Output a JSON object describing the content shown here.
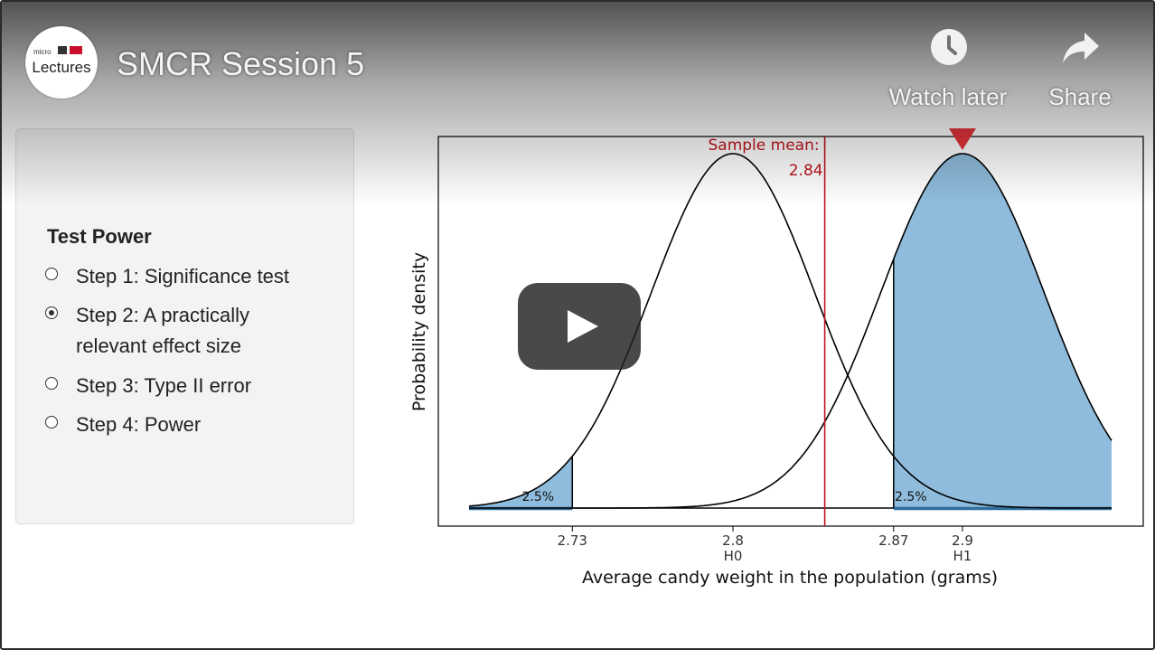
{
  "video": {
    "title": "SMCR Session 5",
    "logo_micro": "micro",
    "logo_name": "Lectures",
    "watch_later_label": "Watch later",
    "share_label": "Share",
    "icons": {
      "watch_later": "clock-icon",
      "share": "share-arrow-icon",
      "play": "play-icon"
    }
  },
  "panel": {
    "title": "Test Power",
    "steps": [
      {
        "label": "Step 1: Significance test",
        "checked": false
      },
      {
        "label": "Step 2: A practically relevant effect size",
        "checked": true
      },
      {
        "label": "Step 3: Type II error",
        "checked": false
      },
      {
        "label": "Step 4: Power",
        "checked": false
      }
    ]
  },
  "chart_data": {
    "type": "area",
    "xlabel": "Average candy weight in the population (grams)",
    "ylabel": "Probability density",
    "xlim": [
      2.685,
      2.965
    ],
    "distributions": [
      {
        "mean": 2.8,
        "sd": 0.0357,
        "tick_label": "H0"
      },
      {
        "mean": 2.9,
        "sd": 0.0357,
        "tick_label": "H1"
      }
    ],
    "x_ticks": [
      {
        "value": 2.73,
        "label": "2.73",
        "sub": ""
      },
      {
        "value": 2.8,
        "label": "2.8",
        "sub": "H0"
      },
      {
        "value": 2.87,
        "label": "2.87",
        "sub": ""
      },
      {
        "value": 2.9,
        "label": "2.9",
        "sub": "H1"
      }
    ],
    "shaded_tails": [
      {
        "from": 2.685,
        "to": 2.73,
        "label": "2.5%"
      },
      {
        "from": 2.87,
        "to": 2.965,
        "label": "2.5%"
      }
    ],
    "sample_mean": {
      "value": 2.84,
      "label": "Sample mean:",
      "value_label": "2.84"
    },
    "arrow_at": 2.9,
    "colors": {
      "curve": "#000000",
      "tail_fill": "#8fbcdd",
      "tail_line": "#2e6f9e",
      "sample_line": "#c0141c",
      "arrow": "#e5343b"
    }
  }
}
